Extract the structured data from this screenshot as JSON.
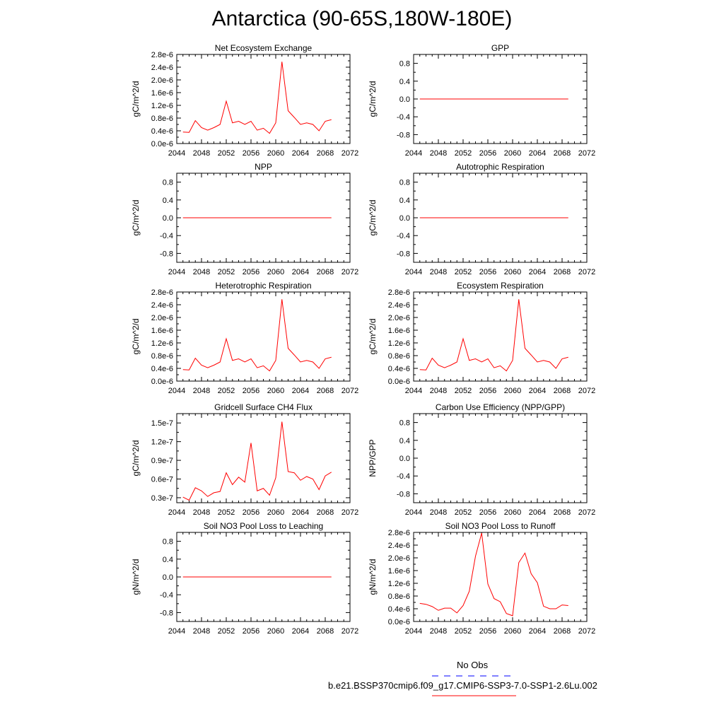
{
  "title": "Antarctica (90-65S,180W-180E)",
  "x_axis": {
    "ticks": [
      2044,
      2048,
      2052,
      2056,
      2060,
      2064,
      2068,
      2072
    ],
    "range": [
      2044,
      2072
    ]
  },
  "colors": {
    "series_line": "#ff0000",
    "obs_line": "#0000ff",
    "axis": "#000000"
  },
  "legend": {
    "obs_label": "No Obs",
    "case_label": "b.e21.BSSP370cmip6.f09_g17.CMIP6-SSP3-7.0-SSP1-2.6Lu.002"
  },
  "chart_data": [
    {
      "type": "line",
      "title": "Net Ecosystem Exchange",
      "ylabel": "gC/m^2/d",
      "ylim": [
        0,
        2.8e-06
      ],
      "yticks": [
        "0.0e-6",
        "0.4e-6",
        "0.8e-6",
        "1.2e-6",
        "1.6e-6",
        "2.0e-6",
        "2.4e-6",
        "2.8e-6"
      ],
      "ytick_values": [
        0,
        4e-07,
        8e-07,
        1.2e-06,
        1.6e-06,
        2e-06,
        2.4e-06,
        2.8e-06
      ],
      "x": [
        2045,
        2046,
        2047,
        2048,
        2049,
        2050,
        2051,
        2052,
        2053,
        2054,
        2055,
        2056,
        2057,
        2058,
        2059,
        2060,
        2061,
        2062,
        2063,
        2064,
        2065,
        2066,
        2067,
        2068,
        2069
      ],
      "values": [
        3.6e-07,
        3.5e-07,
        7.2e-07,
        5e-07,
        4.2e-07,
        5e-07,
        6e-07,
        1.33e-06,
        6.5e-07,
        7e-07,
        6e-07,
        7e-07,
        4.2e-07,
        4.8e-07,
        3.2e-07,
        6.5e-07,
        2.57e-06,
        1.03e-06,
        8.2e-07,
        6e-07,
        6.5e-07,
        6e-07,
        4e-07,
        7e-07,
        7.5e-07
      ]
    },
    {
      "type": "line",
      "title": "GPP",
      "ylabel": "gC/m^2/d",
      "ylim": [
        -1,
        1
      ],
      "yticks": [
        "-0.8",
        "-0.4",
        "0.0",
        "0.4",
        "0.8"
      ],
      "ytick_values": [
        -0.8,
        -0.4,
        0,
        0.4,
        0.8
      ],
      "x": [
        2045,
        2069
      ],
      "values": [
        0,
        0
      ]
    },
    {
      "type": "line",
      "title": "NPP",
      "ylabel": "gC/m^2/d",
      "ylim": [
        -1,
        1
      ],
      "yticks": [
        "-0.8",
        "-0.4",
        "0.0",
        "0.4",
        "0.8"
      ],
      "ytick_values": [
        -0.8,
        -0.4,
        0,
        0.4,
        0.8
      ],
      "x": [
        2045,
        2069
      ],
      "values": [
        0,
        0
      ]
    },
    {
      "type": "line",
      "title": "Autotrophic Respiration",
      "ylabel": "gC/m^2/d",
      "ylim": [
        -1,
        1
      ],
      "yticks": [
        "-0.8",
        "-0.4",
        "0.0",
        "0.4",
        "0.8"
      ],
      "ytick_values": [
        -0.8,
        -0.4,
        0,
        0.4,
        0.8
      ],
      "x": [
        2045,
        2069
      ],
      "values": [
        0,
        0
      ]
    },
    {
      "type": "line",
      "title": "Heterotrophic Respiration",
      "ylabel": "gC/m^2/d",
      "ylim": [
        0,
        2.8e-06
      ],
      "yticks": [
        "0.0e-6",
        "0.4e-6",
        "0.8e-6",
        "1.2e-6",
        "1.6e-6",
        "2.0e-6",
        "2.4e-6",
        "2.8e-6"
      ],
      "ytick_values": [
        0,
        4e-07,
        8e-07,
        1.2e-06,
        1.6e-06,
        2e-06,
        2.4e-06,
        2.8e-06
      ],
      "x": [
        2045,
        2046,
        2047,
        2048,
        2049,
        2050,
        2051,
        2052,
        2053,
        2054,
        2055,
        2056,
        2057,
        2058,
        2059,
        2060,
        2061,
        2062,
        2063,
        2064,
        2065,
        2066,
        2067,
        2068,
        2069
      ],
      "values": [
        3.6e-07,
        3.5e-07,
        7.2e-07,
        5e-07,
        4.2e-07,
        5e-07,
        6e-07,
        1.33e-06,
        6.5e-07,
        7e-07,
        6e-07,
        7e-07,
        4.2e-07,
        4.8e-07,
        3.2e-07,
        6.5e-07,
        2.57e-06,
        1.03e-06,
        8.2e-07,
        6e-07,
        6.5e-07,
        6e-07,
        4e-07,
        7e-07,
        7.5e-07
      ]
    },
    {
      "type": "line",
      "title": "Ecosystem Respiration",
      "ylabel": "gC/m^2/d",
      "ylim": [
        0,
        2.8e-06
      ],
      "yticks": [
        "0.0e-6",
        "0.4e-6",
        "0.8e-6",
        "1.2e-6",
        "1.6e-6",
        "2.0e-6",
        "2.4e-6",
        "2.8e-6"
      ],
      "ytick_values": [
        0,
        4e-07,
        8e-07,
        1.2e-06,
        1.6e-06,
        2e-06,
        2.4e-06,
        2.8e-06
      ],
      "x": [
        2045,
        2046,
        2047,
        2048,
        2049,
        2050,
        2051,
        2052,
        2053,
        2054,
        2055,
        2056,
        2057,
        2058,
        2059,
        2060,
        2061,
        2062,
        2063,
        2064,
        2065,
        2066,
        2067,
        2068,
        2069
      ],
      "values": [
        3.6e-07,
        3.5e-07,
        7.2e-07,
        5e-07,
        4.2e-07,
        5e-07,
        6e-07,
        1.33e-06,
        6.5e-07,
        7e-07,
        6e-07,
        7e-07,
        4.2e-07,
        4.8e-07,
        3.2e-07,
        6.5e-07,
        2.57e-06,
        1.03e-06,
        8.2e-07,
        6e-07,
        6.5e-07,
        6e-07,
        4e-07,
        7e-07,
        7.5e-07
      ]
    },
    {
      "type": "line",
      "title": "Gridcell Surface CH4 Flux",
      "ylabel": "gC/m^2/d",
      "ylim": [
        2.2e-08,
        1.65e-07
      ],
      "yticks": [
        "0.3e-7",
        "0.6e-7",
        "0.9e-7",
        "1.2e-7",
        "1.5e-7"
      ],
      "ytick_values": [
        3e-08,
        6e-08,
        9e-08,
        1.2e-07,
        1.5e-07
      ],
      "x": [
        2045,
        2046,
        2047,
        2048,
        2049,
        2050,
        2051,
        2052,
        2053,
        2054,
        2055,
        2056,
        2057,
        2058,
        2059,
        2060,
        2061,
        2062,
        2063,
        2064,
        2065,
        2066,
        2067,
        2068,
        2069
      ],
      "values": [
        3.1e-08,
        2.6e-08,
        4.6e-08,
        4.1e-08,
        3.2e-08,
        3.8e-08,
        4e-08,
        7e-08,
        5.1e-08,
        6.3e-08,
        5.5e-08,
        1.18e-07,
        4.1e-08,
        4.5e-08,
        3.4e-08,
        6.2e-08,
        1.52e-07,
        7.2e-08,
        7e-08,
        5.8e-08,
        6.4e-08,
        6e-08,
        4.3e-08,
        6.5e-08,
        7.1e-08
      ]
    },
    {
      "type": "line",
      "title": "Carbon Use Efficiency (NPP/GPP)",
      "ylabel": "NPP/GPP",
      "ylim": [
        -1,
        1
      ],
      "yticks": [
        "-0.8",
        "-0.4",
        "0.0",
        "0.4",
        "0.8"
      ],
      "ytick_values": [
        -0.8,
        -0.4,
        0,
        0.4,
        0.8
      ],
      "x": [],
      "values": []
    },
    {
      "type": "line",
      "title": "Soil NO3 Pool Loss to Leaching",
      "ylabel": "gN/m^2/d",
      "ylim": [
        -1,
        1
      ],
      "yticks": [
        "-0.8",
        "-0.4",
        "0.0",
        "0.4",
        "0.8"
      ],
      "ytick_values": [
        -0.8,
        -0.4,
        0,
        0.4,
        0.8
      ],
      "x": [
        2045,
        2069
      ],
      "values": [
        0,
        0
      ]
    },
    {
      "type": "line",
      "title": "Soil NO3 Pool Loss to Runoff",
      "ylabel": "gN/m^2/d",
      "ylim": [
        0,
        2.8e-06
      ],
      "yticks": [
        "0.0e-6",
        "0.4e-6",
        "0.8e-6",
        "1.2e-6",
        "1.6e-6",
        "2.0e-6",
        "2.4e-6",
        "2.8e-6"
      ],
      "ytick_values": [
        0,
        4e-07,
        8e-07,
        1.2e-06,
        1.6e-06,
        2e-06,
        2.4e-06,
        2.8e-06
      ],
      "x": [
        2045,
        2046,
        2047,
        2048,
        2049,
        2050,
        2051,
        2052,
        2053,
        2054,
        2055,
        2056,
        2057,
        2058,
        2059,
        2060,
        2061,
        2062,
        2063,
        2064,
        2065,
        2066,
        2067,
        2068,
        2069
      ],
      "values": [
        5.7e-07,
        5.4e-07,
        4.7e-07,
        3.5e-07,
        4.2e-07,
        4.2e-07,
        2.7e-07,
        5e-07,
        9.5e-07,
        2.05e-06,
        2.78e-06,
        1.18e-06,
        7.2e-07,
        6.2e-07,
        2.5e-07,
        1.8e-07,
        1.85e-06,
        2.15e-06,
        1.5e-06,
        1.22e-06,
        4.8e-07,
        4e-07,
        4e-07,
        5.2e-07,
        5e-07
      ]
    }
  ]
}
